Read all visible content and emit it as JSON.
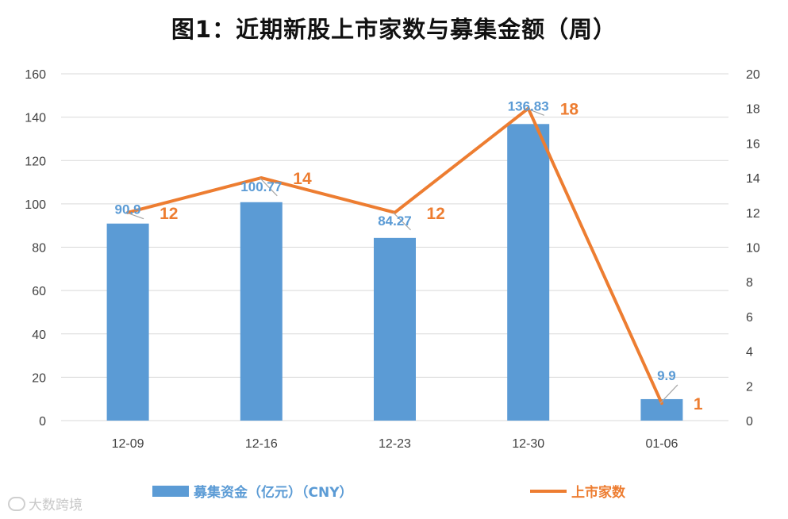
{
  "title": "图1：近期新股上市家数与募集金额（周）",
  "colors": {
    "bar": "#5b9bd5",
    "line": "#ed7d31",
    "grid": "#d9d9d9",
    "axis_text": "#404040",
    "leader": "#a6a6a6"
  },
  "chart_data": {
    "type": "bar+line",
    "categories": [
      "12-09",
      "12-16",
      "12-23",
      "12-30",
      "01-06"
    ],
    "series": [
      {
        "name": "募集资金（亿元）（CNY）",
        "type": "bar",
        "axis": "left",
        "values": [
          90.9,
          100.77,
          84.27,
          136.83,
          9.9
        ],
        "labels": [
          "90.9",
          "100.77",
          "84.27",
          "136.83",
          "9.9"
        ]
      },
      {
        "name": "上市家数",
        "type": "line",
        "axis": "right",
        "values": [
          12,
          14,
          12,
          18,
          1
        ],
        "labels": [
          "12",
          "14",
          "12",
          "18",
          "1"
        ]
      }
    ],
    "y_left": {
      "min": 0,
      "max": 160,
      "ticks": [
        "0",
        "20",
        "40",
        "60",
        "80",
        "100",
        "120",
        "140",
        "160"
      ]
    },
    "y_right": {
      "min": 0,
      "max": 20,
      "ticks": [
        "0",
        "2",
        "4",
        "6",
        "8",
        "10",
        "12",
        "14",
        "16",
        "18",
        "20"
      ]
    },
    "grid": true,
    "legend_position": "bottom"
  },
  "legend": {
    "bar_label": "募集资金（亿元）（CNY）",
    "line_label": "上市家数"
  },
  "watermark": "大数跨境"
}
